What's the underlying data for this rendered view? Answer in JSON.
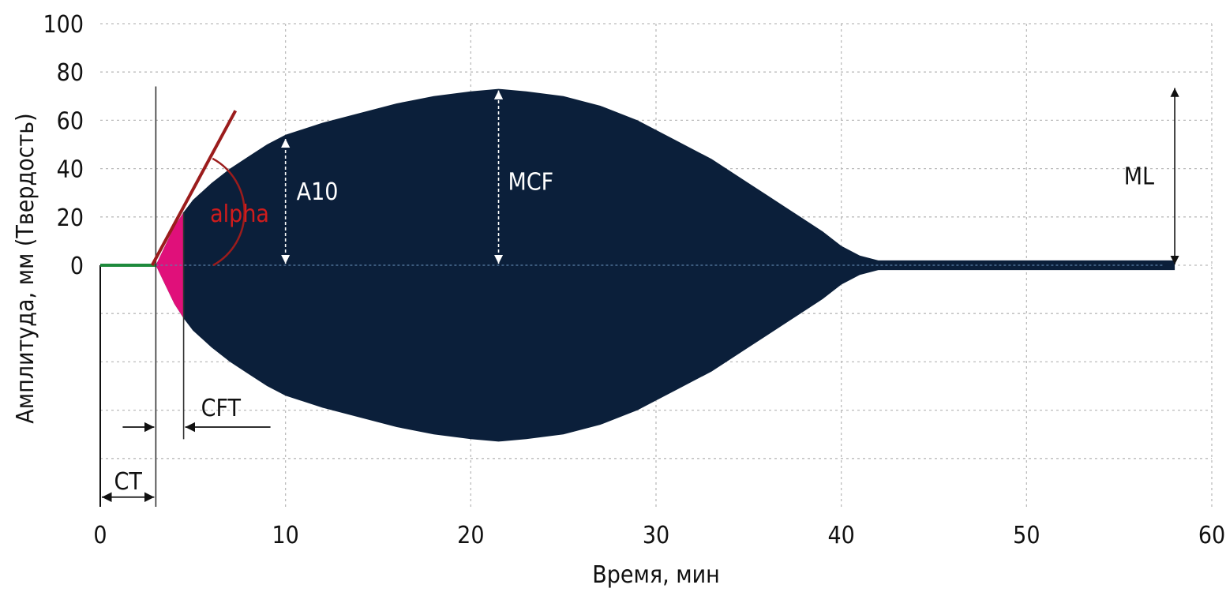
{
  "chart_data": {
    "type": "area",
    "xlabel": "Время, мин",
    "ylabel": "Амплитуда, мм (Твердость)",
    "xlim": [
      0,
      60
    ],
    "ylim": [
      -100,
      100
    ],
    "x_ticks": [
      0,
      10,
      20,
      30,
      40,
      50,
      60
    ],
    "y_ticks": [
      0,
      20,
      40,
      60,
      80,
      100
    ],
    "y_gridlines": [
      -80,
      -60,
      -40,
      -20,
      0,
      20,
      40,
      60,
      80
    ],
    "grid": true,
    "colors": {
      "clot": "#0b1f3a",
      "initial_clot": "#e0107a",
      "baseline": "#1e8a3c",
      "tangent": "#9b1c1c",
      "alpha_label": "#d01c1c",
      "annotation": "#111111",
      "grid": "#bbbbbb"
    },
    "baseline_segment": {
      "x": [
        0,
        3
      ],
      "y": 0
    },
    "clot_curve": {
      "x": [
        3,
        3.5,
        4,
        4.5,
        5,
        6,
        7,
        8,
        9,
        10,
        12,
        14,
        16,
        18,
        20,
        21.5,
        23,
        25,
        27,
        29,
        31,
        33,
        35,
        36,
        37,
        38,
        39,
        40,
        41,
        42,
        42.5,
        43,
        45,
        50,
        55,
        58
      ],
      "upper": [
        0,
        8,
        16,
        22,
        27,
        34,
        40,
        45,
        50,
        54,
        59,
        63,
        67,
        70,
        72,
        73,
        72,
        70,
        66,
        60,
        52,
        44,
        34,
        29,
        24,
        19,
        14,
        8,
        4,
        2,
        2,
        2,
        2,
        2,
        2,
        2
      ],
      "lower": [
        0,
        -8,
        -16,
        -22,
        -27,
        -34,
        -40,
        -45,
        -50,
        -54,
        -59,
        -63,
        -67,
        -70,
        -72,
        -73,
        -72,
        -70,
        -66,
        -60,
        -52,
        -44,
        -34,
        -29,
        -24,
        -19,
        -14,
        -8,
        -4,
        -2,
        -2,
        -2,
        -2,
        -2,
        -2,
        -2
      ]
    },
    "initial_clot_region": {
      "x_start": 3,
      "x_end": 4.5
    },
    "tangent_line": {
      "x": [
        2.8,
        7.3
      ],
      "y": [
        0,
        64
      ]
    },
    "alpha_arc": {
      "center": [
        4.5,
        22
      ],
      "through_x": 6.1
    },
    "markers": {
      "CT": {
        "label": "CT",
        "x_start": 0,
        "x_end": 3,
        "y": -96
      },
      "CFT": {
        "label": "CFT",
        "x_start": 3,
        "x_end": 4.5,
        "y": -67
      },
      "A10": {
        "label": "A10",
        "x": 10,
        "y_from": 0,
        "y_to": 53
      },
      "MCF": {
        "label": "MCF",
        "x": 21.5,
        "y_from": 0,
        "y_to": 73
      },
      "ML": {
        "label": "ML",
        "x": 58,
        "y_from": 0,
        "y_to": 74
      },
      "alpha": {
        "label": "alpha",
        "x": 6.1,
        "y": 18
      }
    },
    "vertical_lines": [
      {
        "x": 3,
        "y_from": 74,
        "y_to": -100
      },
      {
        "x": 4.5,
        "y_from": 22,
        "y_to": -72
      }
    ]
  }
}
